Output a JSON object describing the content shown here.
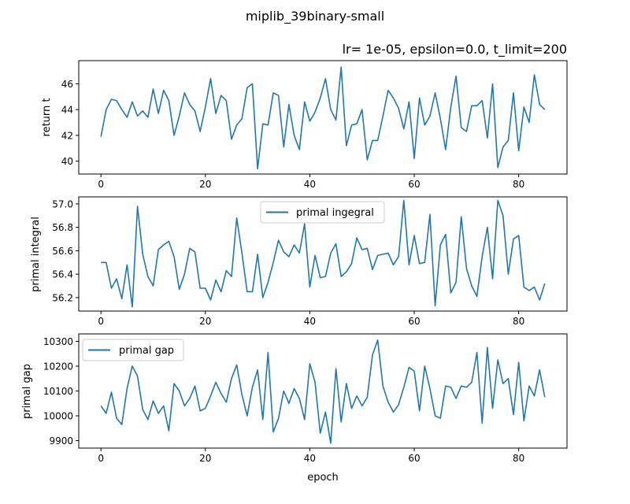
{
  "figure": {
    "suptitle": "miplib_39binary-small",
    "xlabel": "epoch"
  },
  "chart_data": [
    {
      "type": "line",
      "title": "lr= 1e-05, epsilon=0.0, t_limit=200",
      "xlabel": "",
      "ylabel": "return t",
      "xlim": [
        -4.25,
        89.25
      ],
      "ylim": [
        39.0,
        47.8
      ],
      "xticks": [
        0,
        20,
        40,
        60,
        80
      ],
      "yticks": [
        40,
        42,
        44,
        46
      ],
      "ytick_labels": [
        "40",
        "42",
        "44",
        "46"
      ],
      "xtick_labels": [
        "0",
        "20",
        "40",
        "60",
        "80"
      ],
      "legend": null,
      "series": [
        {
          "color": "#1f77b4",
          "x": [
            0,
            1,
            2,
            3,
            4,
            5,
            6,
            7,
            8,
            9,
            10,
            11,
            12,
            13,
            14,
            15,
            16,
            17,
            18,
            19,
            20,
            21,
            22,
            23,
            24,
            25,
            26,
            27,
            28,
            29,
            30,
            31,
            32,
            33,
            34,
            35,
            36,
            37,
            38,
            39,
            40,
            41,
            42,
            43,
            44,
            45,
            46,
            47,
            48,
            49,
            50,
            51,
            52,
            53,
            54,
            55,
            56,
            57,
            58,
            59,
            60,
            61,
            62,
            63,
            64,
            65,
            66,
            67,
            68,
            69,
            70,
            71,
            72,
            73,
            74,
            75,
            76,
            77,
            78,
            79,
            80,
            81,
            82,
            83,
            84,
            85
          ],
          "values": [
            41.9,
            44.0,
            44.8,
            44.7,
            44.0,
            43.4,
            44.6,
            43.5,
            43.9,
            43.4,
            45.6,
            43.7,
            45.5,
            44.7,
            42.0,
            43.5,
            45.3,
            44.4,
            43.9,
            42.3,
            44.2,
            46.4,
            43.7,
            45.1,
            44.7,
            41.7,
            42.8,
            43.3,
            45.7,
            46.0,
            39.4,
            42.9,
            42.8,
            45.3,
            45.1,
            41.1,
            44.4,
            42.0,
            40.9,
            44.6,
            43.1,
            43.8,
            44.9,
            46.4,
            44.0,
            43.2,
            47.3,
            41.2,
            42.8,
            42.9,
            44.0,
            40.1,
            41.6,
            41.6,
            43.5,
            45.5,
            44.9,
            44.1,
            42.5,
            44.6,
            40.2,
            44.9,
            42.8,
            43.5,
            45.3,
            43.3,
            40.9,
            44.2,
            46.6,
            42.6,
            42.3,
            44.3,
            44.3,
            44.7,
            41.8,
            46.0,
            39.5,
            41.1,
            41.6,
            45.3,
            40.8,
            44.2,
            43.0,
            46.7,
            44.4,
            44.0
          ]
        }
      ]
    },
    {
      "type": "line",
      "title": "",
      "xlabel": "",
      "ylabel": "primal integral",
      "xlim": [
        -4.25,
        89.25
      ],
      "ylim": [
        56.085,
        57.06
      ],
      "xticks": [
        0,
        20,
        40,
        60,
        80
      ],
      "yticks": [
        56.2,
        56.4,
        56.6,
        56.8,
        57.0
      ],
      "ytick_labels": [
        "56.2",
        "56.4",
        "56.6",
        "56.8",
        "57.0"
      ],
      "xtick_labels": [
        "0",
        "20",
        "40",
        "60",
        "80"
      ],
      "legend": "upper center",
      "series": [
        {
          "name": "primal ingegral",
          "color": "#1f77b4",
          "x": [
            0,
            1,
            2,
            3,
            4,
            5,
            6,
            7,
            8,
            9,
            10,
            11,
            12,
            13,
            14,
            15,
            16,
            17,
            18,
            19,
            20,
            21,
            22,
            23,
            24,
            25,
            26,
            27,
            28,
            29,
            30,
            31,
            32,
            33,
            34,
            35,
            36,
            37,
            38,
            39,
            40,
            41,
            42,
            43,
            44,
            45,
            46,
            47,
            48,
            49,
            50,
            51,
            52,
            53,
            54,
            55,
            56,
            57,
            58,
            59,
            60,
            61,
            62,
            63,
            64,
            65,
            66,
            67,
            68,
            69,
            70,
            71,
            72,
            73,
            74,
            75,
            76,
            77,
            78,
            79,
            80,
            81,
            82,
            83,
            84,
            85
          ],
          "values": [
            56.5,
            56.5,
            56.28,
            56.36,
            56.19,
            56.48,
            56.12,
            56.98,
            56.57,
            56.38,
            56.3,
            56.61,
            56.65,
            56.68,
            56.55,
            56.27,
            56.4,
            56.62,
            56.59,
            56.28,
            56.28,
            56.18,
            56.35,
            56.25,
            56.43,
            56.38,
            56.88,
            56.58,
            56.25,
            56.25,
            56.57,
            56.2,
            56.33,
            56.5,
            56.69,
            56.59,
            56.55,
            56.65,
            56.58,
            56.83,
            56.29,
            56.56,
            56.37,
            56.38,
            56.58,
            56.66,
            56.38,
            56.42,
            56.49,
            56.71,
            56.61,
            56.62,
            56.44,
            56.56,
            56.57,
            56.58,
            56.48,
            56.55,
            57.03,
            56.48,
            56.73,
            56.49,
            56.5,
            56.91,
            56.13,
            56.65,
            56.74,
            56.24,
            56.33,
            56.89,
            56.45,
            56.3,
            56.21,
            56.55,
            56.8,
            56.36,
            57.03,
            56.9,
            56.4,
            56.7,
            56.73,
            56.29,
            56.26,
            56.29,
            56.18,
            56.32
          ]
        }
      ]
    },
    {
      "type": "line",
      "title": "",
      "xlabel": "epoch",
      "ylabel": "primal gap",
      "xlim": [
        -4.25,
        89.25
      ],
      "ylim": [
        9870,
        10330
      ],
      "xticks": [
        0,
        20,
        40,
        60,
        80
      ],
      "yticks": [
        9900,
        10000,
        10100,
        10200,
        10300
      ],
      "ytick_labels": [
        "9900",
        "10000",
        "10100",
        "10200",
        "10300"
      ],
      "xtick_labels": [
        "0",
        "20",
        "40",
        "60",
        "80"
      ],
      "legend": "upper left",
      "series": [
        {
          "name": "primal gap",
          "color": "#1f77b4",
          "x": [
            0,
            1,
            2,
            3,
            4,
            5,
            6,
            7,
            8,
            9,
            10,
            11,
            12,
            13,
            14,
            15,
            16,
            17,
            18,
            19,
            20,
            21,
            22,
            23,
            24,
            25,
            26,
            27,
            28,
            29,
            30,
            31,
            32,
            33,
            34,
            35,
            36,
            37,
            38,
            39,
            40,
            41,
            42,
            43,
            44,
            45,
            46,
            47,
            48,
            49,
            50,
            51,
            52,
            53,
            54,
            55,
            56,
            57,
            58,
            59,
            60,
            61,
            62,
            63,
            64,
            65,
            66,
            67,
            68,
            69,
            70,
            71,
            72,
            73,
            74,
            75,
            76,
            77,
            78,
            79,
            80,
            81,
            82,
            83,
            84,
            85
          ],
          "values": [
            10040,
            10010,
            10095,
            9990,
            9965,
            10110,
            10200,
            10160,
            10025,
            9985,
            10060,
            10010,
            10040,
            9940,
            10130,
            10100,
            10040,
            10070,
            10120,
            10020,
            10030,
            10080,
            10135,
            10090,
            10055,
            10150,
            10205,
            10085,
            10000,
            10115,
            10185,
            9985,
            10255,
            9935,
            9990,
            10100,
            10050,
            10110,
            10070,
            9985,
            10210,
            10135,
            9930,
            10015,
            9890,
            10190,
            9975,
            10130,
            10030,
            10080,
            10040,
            10075,
            10245,
            10305,
            10120,
            10055,
            10015,
            10045,
            10115,
            10195,
            10180,
            10020,
            10200,
            10110,
            10000,
            9990,
            10120,
            10115,
            10070,
            10120,
            10115,
            10135,
            10255,
            9970,
            10275,
            10030,
            10225,
            10130,
            10150,
            10005,
            10215,
            9980,
            10120,
            10080,
            10185,
            10075
          ]
        }
      ]
    }
  ]
}
